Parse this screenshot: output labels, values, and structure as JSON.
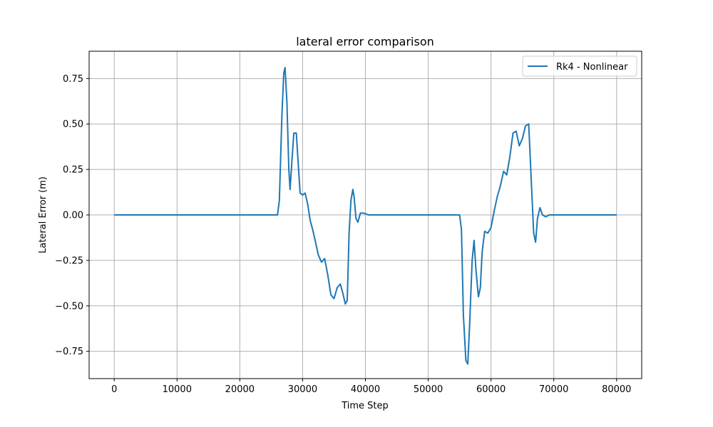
{
  "chart_data": {
    "type": "line",
    "title": "lateral error comparison",
    "xlabel": "Time Step",
    "ylabel": "Lateral Error (m)",
    "xlim": [
      -4000,
      84000
    ],
    "ylim": [
      -0.9,
      0.9
    ],
    "xticks": [
      0,
      10000,
      20000,
      30000,
      40000,
      50000,
      60000,
      70000,
      80000
    ],
    "yticks": [
      -0.75,
      -0.5,
      -0.25,
      0.0,
      0.25,
      0.5,
      0.75
    ],
    "xtick_labels": [
      "0",
      "10000",
      "20000",
      "30000",
      "40000",
      "50000",
      "60000",
      "70000",
      "80000"
    ],
    "ytick_labels": [
      "−0.75",
      "−0.50",
      "−0.25",
      "0.00",
      "0.25",
      "0.50",
      "0.75"
    ],
    "grid": true,
    "legend_position": "top-right",
    "series": [
      {
        "name": "Rk4 - Nonlinear",
        "color": "#1f77b4",
        "x": [
          0,
          26000,
          26300,
          26700,
          27000,
          27200,
          27500,
          27800,
          28000,
          28300,
          28600,
          29000,
          29300,
          29600,
          30000,
          30400,
          30800,
          31200,
          31600,
          32000,
          32500,
          33000,
          33500,
          34000,
          34500,
          35000,
          35500,
          36000,
          36400,
          36800,
          37100,
          37400,
          37700,
          38000,
          38200,
          38500,
          38800,
          39200,
          39700,
          40500,
          55000,
          55300,
          55600,
          56000,
          56300,
          56600,
          57000,
          57300,
          57600,
          58000,
          58300,
          58600,
          59000,
          59500,
          60000,
          60500,
          61000,
          61500,
          62000,
          62500,
          63000,
          63500,
          64000,
          64500,
          65000,
          65500,
          66000,
          66400,
          66800,
          67100,
          67400,
          67800,
          68200,
          68700,
          69300,
          70000,
          80000
        ],
        "y": [
          0.0,
          0.0,
          0.08,
          0.55,
          0.78,
          0.81,
          0.62,
          0.25,
          0.14,
          0.3,
          0.45,
          0.45,
          0.28,
          0.12,
          0.11,
          0.12,
          0.06,
          -0.03,
          -0.08,
          -0.14,
          -0.22,
          -0.26,
          -0.24,
          -0.33,
          -0.44,
          -0.46,
          -0.4,
          -0.38,
          -0.43,
          -0.49,
          -0.47,
          -0.1,
          0.08,
          0.14,
          0.1,
          -0.02,
          -0.04,
          0.01,
          0.01,
          0.0,
          0.0,
          -0.08,
          -0.55,
          -0.8,
          -0.82,
          -0.6,
          -0.25,
          -0.14,
          -0.3,
          -0.45,
          -0.4,
          -0.2,
          -0.09,
          -0.1,
          -0.07,
          0.02,
          0.1,
          0.16,
          0.24,
          0.22,
          0.32,
          0.45,
          0.46,
          0.38,
          0.42,
          0.49,
          0.5,
          0.2,
          -0.1,
          -0.15,
          -0.02,
          0.04,
          0.0,
          -0.01,
          0.0,
          0.0,
          0.0
        ]
      }
    ]
  }
}
